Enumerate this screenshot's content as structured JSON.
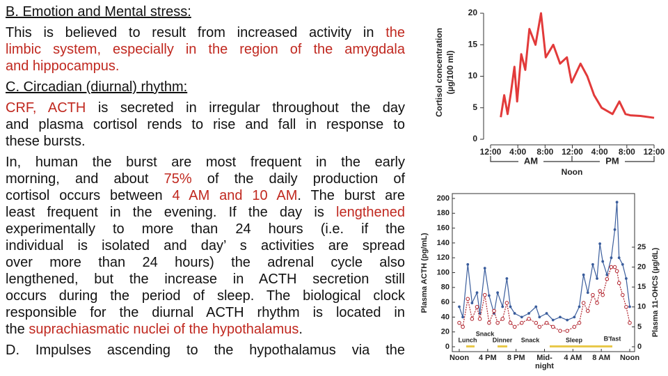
{
  "text": {
    "paragraphs": [
      {
        "heading": true,
        "lines": [
          [
            {
              "text": "B. Emotion and Mental stress:"
            }
          ]
        ]
      },
      {
        "lines": [
          [
            {
              "text": "This is believed to result from increased activity in "
            },
            {
              "text": "the",
              "color": "#c0281f"
            }
          ],
          [
            {
              "text": "limbic system, especially in the region of the amygdala",
              "color": "#c0281f"
            }
          ],
          [
            {
              "text": "and hippocampus.",
              "color": "#c0281f"
            }
          ]
        ]
      },
      {
        "heading": true,
        "lines": [
          [
            {
              "text": "C. Circadian (diurnal) rhythm:"
            }
          ]
        ]
      },
      {
        "lines": [
          [
            {
              "text": "CRF, ACTH",
              "color": "#c0281f"
            },
            {
              "text": " is secreted in irregular throughout the day"
            }
          ],
          [
            {
              "text": "and plasma cortisol rends to rise and fall in response to"
            }
          ],
          [
            {
              "text": "these bursts."
            }
          ]
        ]
      },
      {
        "lines": [
          [
            {
              "text": "In, human the burst are most frequent in the early"
            }
          ],
          [
            {
              "text": "morning, and about "
            },
            {
              "text": "75%",
              "color": "#c0281f"
            },
            {
              "text": " of the daily production of"
            }
          ],
          [
            {
              "text": "cortisol occurs between "
            },
            {
              "text": "4 AM and 10 AM",
              "color": "#c0281f"
            },
            {
              "text": ". The burst are"
            }
          ],
          [
            {
              "text": "least frequent in the evening. If the day is "
            },
            {
              "text": "lengthened",
              "color": "#c0281f"
            }
          ],
          [
            {
              "text": "experimentally to more than 24 hours (i.e. if the"
            }
          ],
          [
            {
              "text": "individual is isolated and day’ s activities are spread"
            }
          ],
          [
            {
              "text": "over more than 24 hours) the adrenal cycle also"
            }
          ],
          [
            {
              "text": "lengthened, but the increase in ACTH secretion still"
            }
          ],
          [
            {
              "text": "occurs during the period of sleep. The biological clock"
            }
          ],
          [
            {
              "text": "responsible for the diurnal ACTH rhythm is located in"
            }
          ],
          [
            {
              "text": "the "
            },
            {
              "text": "suprachiasmatic nuclei of the hypothalamus",
              "color": "#c0281f"
            },
            {
              "text": "."
            }
          ]
        ]
      },
      {
        "continues": true,
        "lines": [
          [
            {
              "text": "D. Impulses ascending to the hypothalamus via the"
            }
          ]
        ]
      }
    ]
  },
  "chart_data": [
    {
      "type": "line",
      "ylabel": [
        "Cortisol concentration",
        "(µg/100 ml)"
      ],
      "xlim": [
        0,
        24
      ],
      "xticks": [
        {
          "value": 0,
          "label": "12:00"
        },
        {
          "value": 4,
          "label": "4:00"
        },
        {
          "value": 8,
          "label": "8:00"
        },
        {
          "value": 12,
          "label": "12:00"
        },
        {
          "value": 16,
          "label": "4:00"
        },
        {
          "value": 20,
          "label": "8:00"
        },
        {
          "value": 24,
          "label": "12:00"
        }
      ],
      "ylim": [
        0,
        20
      ],
      "yticks": [
        0,
        5,
        10,
        15,
        20
      ],
      "annotations": [
        {
          "text": "AM"
        },
        {
          "text": "Noon"
        },
        {
          "text": "PM"
        }
      ],
      "x": [
        1.5,
        2.0,
        2.5,
        3.0,
        3.5,
        3.9,
        4.5,
        5.1,
        5.7,
        6.6,
        7.4,
        8.1,
        9.2,
        10.2,
        11.2,
        11.9,
        13.2,
        14.2,
        15.2,
        16.3,
        17.9,
        18.9,
        19.8,
        20.5,
        22.0,
        24.0
      ],
      "series": [
        {
          "color": "#e23a3a",
          "values": [
            3.5,
            7,
            4,
            7.5,
            11.5,
            6,
            13.5,
            11,
            17.5,
            15,
            20,
            13,
            15,
            12,
            13,
            9,
            12,
            10,
            7,
            5,
            4,
            6,
            4,
            3.8,
            3.7,
            3.4
          ]
        }
      ]
    },
    {
      "type": "line",
      "ylabel": "Plasma ACTH (pg/mL)",
      "y2label": "Plasma 11-OHCS (µg/dL)",
      "xlim": [
        0,
        24
      ],
      "xticks": [
        {
          "value": 0,
          "label": "Noon"
        },
        {
          "value": 4,
          "label": "4 PM"
        },
        {
          "value": 8,
          "label": "8 PM"
        },
        {
          "value": 12,
          "label": "Mid-\nnight"
        },
        {
          "value": 16,
          "label": "4 AM"
        },
        {
          "value": 20,
          "label": "8 AM"
        },
        {
          "value": 24,
          "label": "Noon"
        }
      ],
      "ylim": [
        0,
        200
      ],
      "yticks": [
        0,
        20,
        40,
        60,
        80,
        100,
        120,
        140,
        160,
        180,
        200
      ],
      "y2lim": [
        0,
        25
      ],
      "y2ticks": [
        0,
        5,
        10,
        15,
        20,
        25
      ],
      "annotations": [
        {
          "text": "Lunch"
        },
        {
          "text": "Snack"
        },
        {
          "text": "Dinner"
        },
        {
          "text": "Snack"
        },
        {
          "text": "Sleep"
        },
        {
          "text": "B'fast"
        }
      ],
      "x": [
        0,
        0.5,
        1.2,
        1.8,
        2.5,
        2.9,
        3.6,
        4.2,
        4.9,
        5.4,
        6.1,
        6.7,
        7.2,
        7.8,
        8.8,
        9.8,
        10.8,
        11.3,
        12.3,
        13.2,
        14.2,
        15.2,
        16.2,
        16.9,
        17.5,
        18.1,
        18.8,
        19.4,
        19.8,
        20.2,
        20.8,
        21.4,
        21.9,
        22.2,
        22.5,
        23.0,
        23.5,
        24.0
      ],
      "series": [
        {
          "color": "#3a5d9c",
          "marker": "dot",
          "values": [
            54,
            40,
            111,
            59,
            73,
            45,
            106,
            69,
            45,
            73,
            54,
            92,
            54,
            45,
            40,
            45,
            54,
            40,
            45,
            36,
            40,
            36,
            40,
            54,
            97,
            73,
            111,
            92,
            139,
            115,
            97,
            120,
            158,
            195,
            120,
            111,
            92,
            54
          ]
        },
        {
          "color": "#b0202a",
          "marker": "circle",
          "axis": "y2",
          "values": [
            6,
            5,
            12,
            7,
            10,
            7,
            13,
            6,
            9,
            6,
            7,
            11,
            6,
            5,
            6,
            7,
            6,
            5,
            6,
            5,
            4,
            4,
            5,
            6,
            11,
            9,
            13,
            11,
            14,
            13,
            17,
            20,
            20,
            19,
            16,
            13,
            10,
            6
          ]
        }
      ]
    }
  ]
}
